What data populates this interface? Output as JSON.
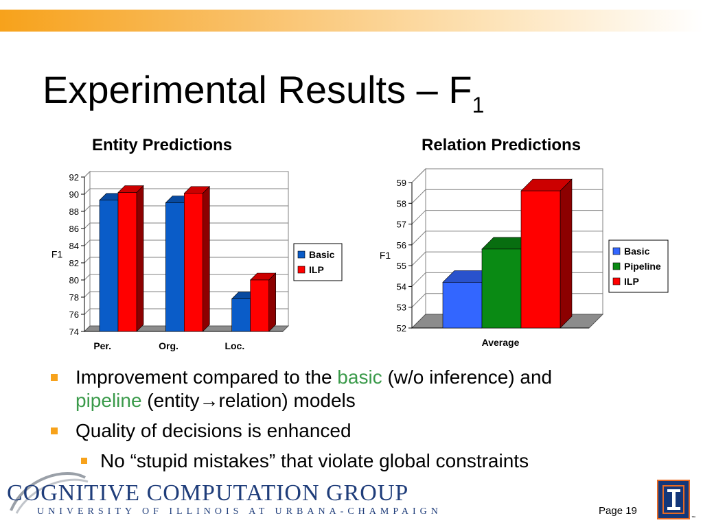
{
  "slide": {
    "title_main": "Experimental Results – F",
    "title_sub": "1",
    "page_label": "Page 19"
  },
  "bullets": {
    "b1_part1": "Improvement compared to the ",
    "b1_basic": "basic",
    "b1_part2": " (w/o inference) and",
    "b1_pipeline": "pipeline",
    "b1_part3": " (entity→relation) models",
    "b2": "Quality of decisions is enhanced",
    "b3": "No “stupid mistakes” that violate global constraints"
  },
  "logo": {
    "line1": "COGNITIVE COMPUTATION GROUP",
    "line2": "UNIVERSITY OF ILLINOIS AT URBANA-CHAMPAIGN"
  },
  "chart_data": [
    {
      "type": "bar",
      "title": "Entity Predictions",
      "ylabel": "F1",
      "xlabel": "",
      "categories": [
        "Per.",
        "Org.",
        "Loc."
      ],
      "ylim": [
        74,
        92
      ],
      "yticks": [
        74,
        76,
        78,
        80,
        82,
        84,
        86,
        88,
        90,
        92
      ],
      "grid": true,
      "legend": "right",
      "series": [
        {
          "name": "Basic",
          "color": "#0a5cc8",
          "values": [
            89.3,
            89.0,
            77.8
          ]
        },
        {
          "name": "ILP",
          "color": "#ff0000",
          "values": [
            90.2,
            90.1,
            80.0
          ]
        }
      ]
    },
    {
      "type": "bar",
      "title": "Relation Predictions",
      "ylabel": "F1",
      "xlabel": "",
      "categories": [
        "Average"
      ],
      "ylim": [
        52,
        59
      ],
      "yticks": [
        52,
        53,
        54,
        55,
        56,
        57,
        58,
        59
      ],
      "grid": true,
      "legend": "right",
      "series": [
        {
          "name": "Basic",
          "color": "#3366ff",
          "values": [
            54.2
          ]
        },
        {
          "name": "Pipeline",
          "color": "#0a8a14",
          "values": [
            55.8
          ]
        },
        {
          "name": "ILP",
          "color": "#ff0000",
          "values": [
            58.6
          ]
        }
      ]
    }
  ]
}
